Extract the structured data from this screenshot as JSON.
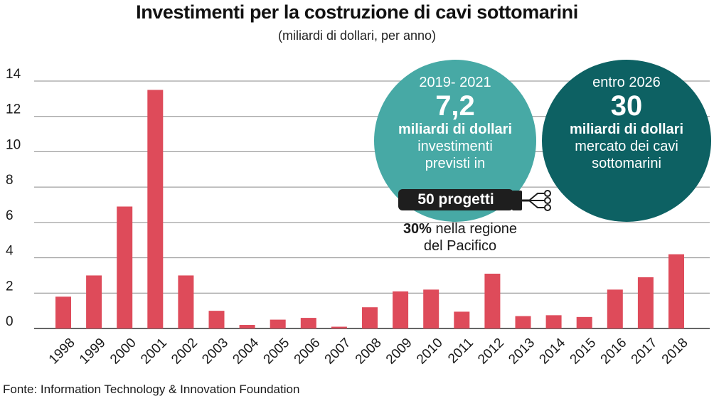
{
  "title": "Investimenti per la costruzione di cavi sottomarini",
  "subtitle": "(miliardi di dollari, per anno)",
  "source": "Fonte: Information Technology & Innovation Foundation",
  "colors": {
    "bar": "#de4b5a",
    "bubble_left": "#47a9a5",
    "bubble_right": "#0d6163",
    "gridline": "#8a8a8a",
    "pill": "#1e1e1e"
  },
  "chart_data": {
    "type": "bar",
    "title": "Investimenti per la costruzione di cavi sottomarini",
    "subtitle": "(miliardi di dollari, per anno)",
    "categories": [
      "1998",
      "1999",
      "2000",
      "2001",
      "2002",
      "2003",
      "2004",
      "2005",
      "2006",
      "2007",
      "2008",
      "2009",
      "2010",
      "2011",
      "2012",
      "2013",
      "2014",
      "2015",
      "2016",
      "2017",
      "2018"
    ],
    "values": [
      1.8,
      3.0,
      6.9,
      13.5,
      3.0,
      1.0,
      0.2,
      0.5,
      0.6,
      0.1,
      1.2,
      2.1,
      2.2,
      0.95,
      3.1,
      0.7,
      0.75,
      0.65,
      2.2,
      2.9,
      4.2
    ],
    "y_ticks": [
      "0",
      "2",
      "4",
      "6",
      "8",
      "10",
      "12",
      "14"
    ],
    "ylim": [
      0,
      14
    ],
    "grid": true,
    "xlabel": "",
    "ylabel": ""
  },
  "callouts": {
    "left": {
      "period": "2019- 2021",
      "value": "7,2",
      "unit": "miliardi di dollari",
      "line1": "investimenti",
      "line2": "previsti in",
      "projects": "50 progetti",
      "note_bold": "30%",
      "note_rest": " nella regione",
      "note_line2": "del Pacifico"
    },
    "right": {
      "period": "entro 2026",
      "value": "30",
      "unit": "miliardi  di dollari",
      "line1": "mercato dei cavi",
      "line2": "sottomarini"
    }
  },
  "icons": {
    "cable": "cable-plug-icon"
  }
}
